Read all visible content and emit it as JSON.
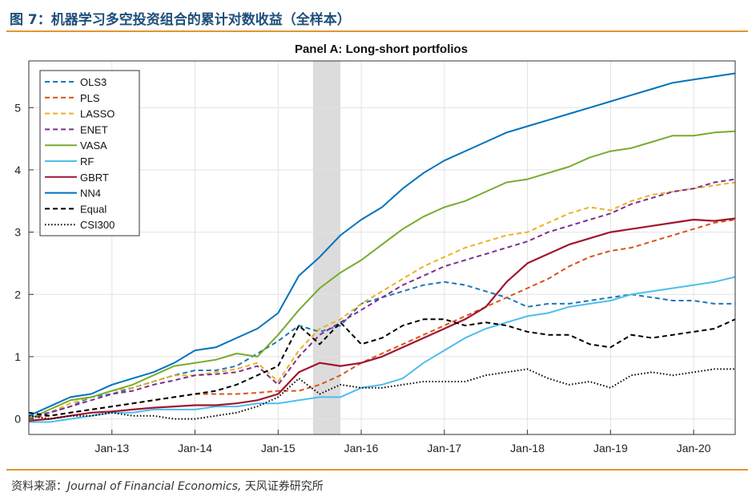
{
  "header": {
    "title": "图 7：机器学习多空投资组合的累计对数收益（全样本）"
  },
  "source": {
    "label": "资料来源：",
    "journal": "Journal of Financial Economics,",
    "org": "天风证券研究所"
  },
  "colors": {
    "accent_rule": "#e39432",
    "title_color": "#1f4e7a",
    "shade": "#dcdcdc"
  },
  "chart_data": {
    "type": "line",
    "title": "Panel A: Long-short portfolios",
    "xlabel": "",
    "ylabel": "",
    "xlim": [
      2012.0,
      2020.5
    ],
    "ylim": [
      -0.25,
      5.75
    ],
    "yticks": [
      0,
      1,
      2,
      3,
      4,
      5
    ],
    "xticks": [
      {
        "v": 2013.0,
        "label": "Jan-13"
      },
      {
        "v": 2014.0,
        "label": "Jan-14"
      },
      {
        "v": 2015.0,
        "label": "Jan-15"
      },
      {
        "v": 2016.0,
        "label": "Jan-16"
      },
      {
        "v": 2017.0,
        "label": "Jan-17"
      },
      {
        "v": 2018.0,
        "label": "Jan-18"
      },
      {
        "v": 2019.0,
        "label": "Jan-19"
      },
      {
        "v": 2020.0,
        "label": "Jan-20"
      }
    ],
    "grid": true,
    "legend_position": "top-left",
    "shaded_region": [
      2015.42,
      2015.75
    ],
    "x": [
      2012.0,
      2012.25,
      2012.5,
      2012.75,
      2013.0,
      2013.25,
      2013.5,
      2013.75,
      2014.0,
      2014.25,
      2014.5,
      2014.75,
      2015.0,
      2015.25,
      2015.5,
      2015.75,
      2016.0,
      2016.25,
      2016.5,
      2016.75,
      2017.0,
      2017.25,
      2017.5,
      2017.75,
      2018.0,
      2018.25,
      2018.5,
      2018.75,
      2019.0,
      2019.25,
      2019.5,
      2019.75,
      2020.0,
      2020.25,
      2020.5
    ],
    "series": [
      {
        "name": "OLS3",
        "color": "#1f77b4",
        "dash": "dashed",
        "values": [
          0.05,
          0.1,
          0.2,
          0.35,
          0.4,
          0.5,
          0.6,
          0.7,
          0.78,
          0.78,
          0.85,
          1.05,
          1.25,
          1.5,
          1.4,
          1.5,
          1.85,
          1.95,
          2.05,
          2.15,
          2.2,
          2.15,
          2.05,
          1.95,
          1.8,
          1.85,
          1.85,
          1.9,
          1.95,
          2.0,
          1.95,
          1.9,
          1.9,
          1.85,
          1.85
        ]
      },
      {
        "name": "PLS",
        "color": "#d95319",
        "dash": "dashed",
        "values": [
          0.02,
          0.05,
          0.1,
          0.15,
          0.2,
          0.25,
          0.3,
          0.35,
          0.4,
          0.4,
          0.4,
          0.42,
          0.45,
          0.45,
          0.55,
          0.7,
          0.9,
          1.05,
          1.2,
          1.35,
          1.5,
          1.65,
          1.8,
          1.95,
          2.1,
          2.25,
          2.45,
          2.6,
          2.7,
          2.75,
          2.85,
          2.95,
          3.05,
          3.15,
          3.2
        ]
      },
      {
        "name": "LASSO",
        "color": "#edb120",
        "dash": "dashed",
        "values": [
          0.0,
          0.1,
          0.25,
          0.35,
          0.45,
          0.5,
          0.6,
          0.7,
          0.7,
          0.75,
          0.8,
          0.9,
          0.6,
          1.1,
          1.45,
          1.6,
          1.85,
          2.05,
          2.25,
          2.45,
          2.6,
          2.75,
          2.85,
          2.95,
          3.0,
          3.15,
          3.3,
          3.4,
          3.35,
          3.5,
          3.6,
          3.65,
          3.7,
          3.75,
          3.8
        ]
      },
      {
        "name": "ENET",
        "color": "#7e2f8e",
        "dash": "dashed",
        "values": [
          0.0,
          0.1,
          0.2,
          0.3,
          0.4,
          0.45,
          0.55,
          0.62,
          0.7,
          0.72,
          0.75,
          0.85,
          0.55,
          1.0,
          1.35,
          1.55,
          1.75,
          1.95,
          2.15,
          2.3,
          2.45,
          2.55,
          2.65,
          2.75,
          2.85,
          3.0,
          3.1,
          3.2,
          3.3,
          3.45,
          3.55,
          3.65,
          3.7,
          3.8,
          3.85
        ]
      },
      {
        "name": "VASA",
        "color": "#77ac30",
        "dash": "solid",
        "values": [
          0.0,
          0.15,
          0.3,
          0.35,
          0.45,
          0.55,
          0.7,
          0.85,
          0.9,
          0.95,
          1.05,
          1.0,
          1.35,
          1.75,
          2.1,
          2.35,
          2.55,
          2.8,
          3.05,
          3.25,
          3.4,
          3.5,
          3.65,
          3.8,
          3.85,
          3.95,
          4.05,
          4.2,
          4.3,
          4.35,
          4.45,
          4.55,
          4.55,
          4.6,
          4.62
        ]
      },
      {
        "name": "RF",
        "color": "#4dbeee",
        "dash": "solid",
        "values": [
          -0.05,
          -0.05,
          0.0,
          0.05,
          0.1,
          0.1,
          0.15,
          0.15,
          0.15,
          0.2,
          0.2,
          0.25,
          0.25,
          0.3,
          0.35,
          0.35,
          0.5,
          0.55,
          0.65,
          0.9,
          1.1,
          1.3,
          1.45,
          1.55,
          1.65,
          1.7,
          1.8,
          1.85,
          1.9,
          2.0,
          2.05,
          2.1,
          2.15,
          2.2,
          2.28
        ]
      },
      {
        "name": "GBRT",
        "color": "#a2142f",
        "dash": "solid",
        "values": [
          -0.03,
          0.0,
          0.05,
          0.1,
          0.12,
          0.15,
          0.18,
          0.2,
          0.22,
          0.22,
          0.25,
          0.3,
          0.4,
          0.75,
          0.9,
          0.85,
          0.9,
          1.0,
          1.15,
          1.3,
          1.45,
          1.6,
          1.8,
          2.2,
          2.5,
          2.65,
          2.8,
          2.9,
          3.0,
          3.05,
          3.1,
          3.15,
          3.2,
          3.18,
          3.22
        ]
      },
      {
        "name": "NN4",
        "color": "#0072bd",
        "dash": "solid",
        "values": [
          0.05,
          0.2,
          0.35,
          0.4,
          0.55,
          0.65,
          0.75,
          0.9,
          1.1,
          1.15,
          1.3,
          1.45,
          1.7,
          2.3,
          2.6,
          2.95,
          3.2,
          3.4,
          3.7,
          3.95,
          4.15,
          4.3,
          4.45,
          4.6,
          4.7,
          4.8,
          4.9,
          5.0,
          5.1,
          5.2,
          5.3,
          5.4,
          5.45,
          5.5,
          5.55
        ]
      },
      {
        "name": "Equal",
        "color": "#000000",
        "dash": "dashed",
        "values": [
          0.1,
          0.05,
          0.1,
          0.15,
          0.2,
          0.25,
          0.3,
          0.35,
          0.4,
          0.45,
          0.55,
          0.7,
          0.85,
          1.5,
          1.2,
          1.55,
          1.2,
          1.3,
          1.5,
          1.6,
          1.6,
          1.5,
          1.55,
          1.5,
          1.4,
          1.35,
          1.35,
          1.2,
          1.15,
          1.35,
          1.3,
          1.35,
          1.4,
          1.45,
          1.6
        ]
      },
      {
        "name": "CSI300",
        "color": "#000000",
        "dash": "dotted",
        "values": [
          0.05,
          0.0,
          0.05,
          0.05,
          0.1,
          0.05,
          0.05,
          0.0,
          0.0,
          0.05,
          0.1,
          0.2,
          0.35,
          0.65,
          0.4,
          0.55,
          0.5,
          0.5,
          0.55,
          0.6,
          0.6,
          0.6,
          0.7,
          0.75,
          0.8,
          0.65,
          0.55,
          0.6,
          0.5,
          0.7,
          0.75,
          0.7,
          0.75,
          0.8,
          0.8
        ]
      }
    ]
  }
}
